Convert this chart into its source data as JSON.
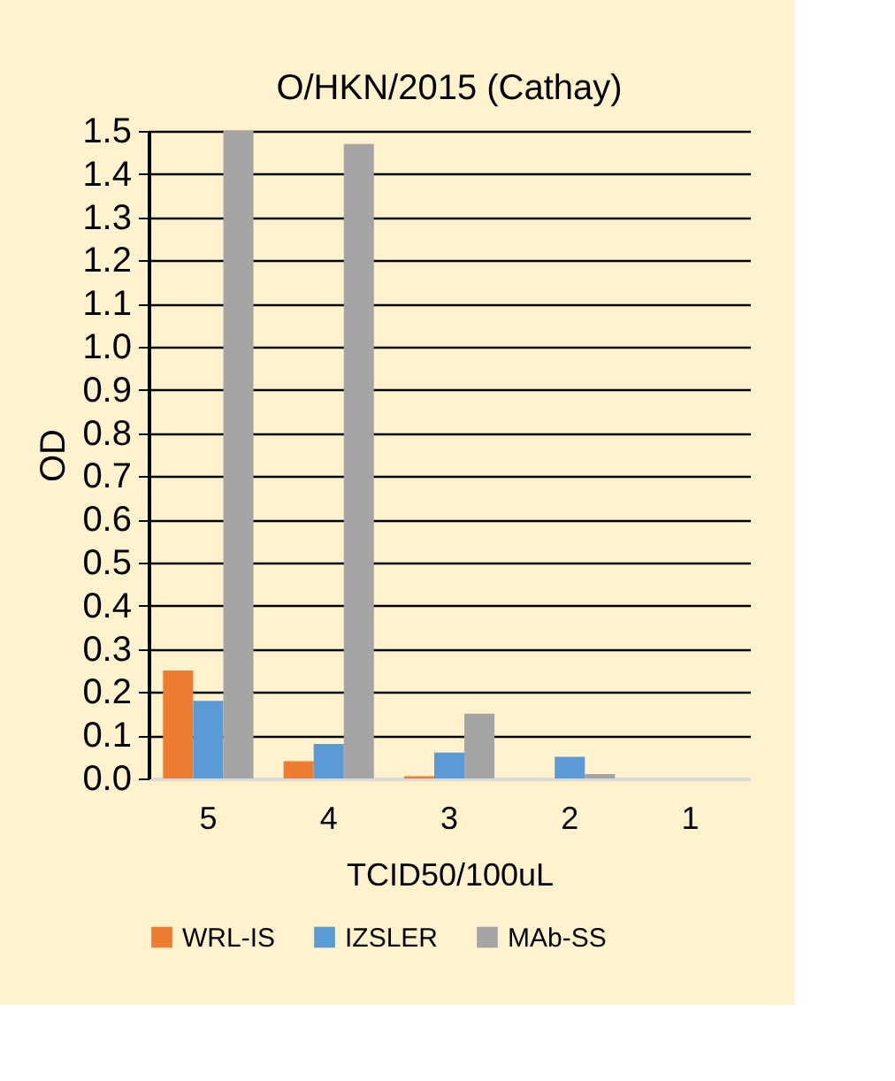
{
  "chart_data": {
    "type": "bar",
    "title": "O/HKN/2015 (Cathay)",
    "xlabel": "TCID50/100uL",
    "ylabel": "OD",
    "categories": [
      "5",
      "4",
      "3",
      "2",
      "1"
    ],
    "series": [
      {
        "name": "WRL-IS",
        "color": "#ed7d31",
        "values": [
          0.25,
          0.04,
          0.005,
          0,
          0
        ]
      },
      {
        "name": "IZSLER",
        "color": "#5b9bd5",
        "values": [
          0.18,
          0.08,
          0.06,
          0.05,
          0
        ]
      },
      {
        "name": "MAb-SS",
        "color": "#a5a5a5",
        "values": [
          1.5,
          1.47,
          0.15,
          0.01,
          0
        ]
      }
    ],
    "ylim": [
      0,
      1.5
    ],
    "yticks": [
      {
        "value": 0,
        "label": "0.0"
      },
      0.1,
      0.2,
      0.3,
      0.4,
      0.5,
      0.6,
      0.7,
      0.8,
      0.9,
      {
        "value": 1.0,
        "label": "1.0"
      },
      1.1,
      1.2,
      1.3,
      1.4,
      1.5
    ],
    "grid": "y",
    "legend": "bottom"
  }
}
